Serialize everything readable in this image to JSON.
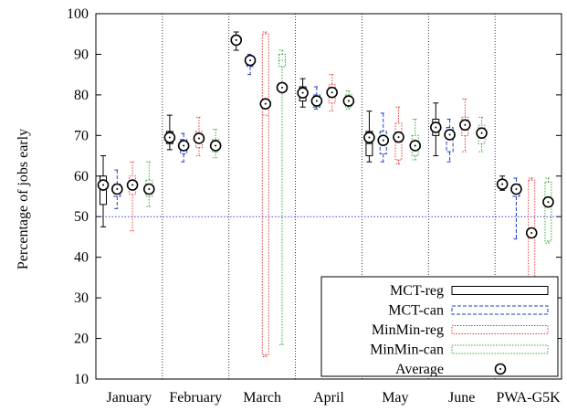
{
  "chart_data": {
    "type": "box",
    "ylabel": "Percentage of jobs early",
    "xlabel": "",
    "ylim": [
      10,
      100
    ],
    "yticks": [
      10,
      20,
      30,
      40,
      50,
      60,
      70,
      80,
      90,
      100
    ],
    "reference_line": 50,
    "categories": [
      "January",
      "February",
      "March",
      "April",
      "May",
      "June",
      "PWA-G5K"
    ],
    "legend": {
      "placement": "bottom-right",
      "entries": [
        "MCT-reg",
        "MCT-can",
        "MinMin-reg",
        "MinMin-can",
        "Average"
      ]
    },
    "colors": {
      "MCT-reg": "#000000",
      "MCT-can": "#1f3fc8",
      "MinMin-reg": "#e8393a",
      "MinMin-can": "#3aa83a",
      "reference": "#3a3ae0"
    },
    "series": [
      {
        "name": "MCT-reg",
        "style": "solid",
        "stats": [
          {
            "min": 47.5,
            "q1": 53,
            "median": 57,
            "q3": 60,
            "max": 65,
            "mean": 57.8
          },
          {
            "min": 66.5,
            "q1": 68,
            "median": 69.5,
            "q3": 71,
            "max": 75,
            "mean": 69.5
          },
          {
            "min": 91,
            "q1": 92.5,
            "median": 93.5,
            "q3": 94.5,
            "max": 95.5,
            "mean": 93.5
          },
          {
            "min": 77,
            "q1": 78.5,
            "median": 80.5,
            "q3": 82,
            "max": 84,
            "mean": 80.5
          },
          {
            "min": 63.5,
            "q1": 65,
            "median": 68,
            "q3": 71,
            "max": 76,
            "mean": 69.5
          },
          {
            "min": 65,
            "q1": 70,
            "median": 72,
            "q3": 74,
            "max": 78,
            "mean": 72
          },
          {
            "min": 56.5,
            "q1": 57,
            "median": 58,
            "q3": 59,
            "max": 60,
            "mean": 58
          }
        ]
      },
      {
        "name": "MCT-can",
        "style": "dashed",
        "stats": [
          {
            "min": 52,
            "q1": 55,
            "median": 56.5,
            "q3": 58,
            "max": 61.5,
            "mean": 56.8
          },
          {
            "min": 63.5,
            "q1": 65.5,
            "median": 67.5,
            "q3": 69,
            "max": 70.5,
            "mean": 67.5
          },
          {
            "min": 85,
            "q1": 87,
            "median": 88.5,
            "q3": 89.5,
            "max": 90,
            "mean": 88.5
          },
          {
            "min": 76.5,
            "q1": 77,
            "median": 78.5,
            "q3": 80,
            "max": 82,
            "mean": 78.5
          },
          {
            "min": 63.5,
            "q1": 65.5,
            "median": 68.5,
            "q3": 71,
            "max": 75.5,
            "mean": 68.8
          },
          {
            "min": 63.5,
            "q1": 66,
            "median": 70,
            "q3": 72,
            "max": 74,
            "mean": 70.2
          },
          {
            "min": 44.5,
            "q1": 55,
            "median": 57,
            "q3": 58,
            "max": 59.5,
            "mean": 56.8
          }
        ]
      },
      {
        "name": "MinMin-reg",
        "style": "dotted",
        "stats": [
          {
            "min": 46.5,
            "q1": 55.5,
            "median": 57.5,
            "q3": 60,
            "max": 63.5,
            "mean": 57.8
          },
          {
            "min": 65,
            "q1": 67,
            "median": 69,
            "q3": 71,
            "max": 74.5,
            "mean": 69.3
          },
          {
            "min": 15.5,
            "q1": 16,
            "median": 75,
            "q3": 95,
            "max": 95.5,
            "mean": 77.8
          },
          {
            "min": 76,
            "q1": 78,
            "median": 80.5,
            "q3": 82.5,
            "max": 85,
            "mean": 80.6
          },
          {
            "min": 63,
            "q1": 64,
            "median": 69.5,
            "q3": 73,
            "max": 77,
            "mean": 69.6
          },
          {
            "min": 66,
            "q1": 70,
            "median": 72.5,
            "q3": 74.5,
            "max": 79,
            "mean": 72.6
          },
          {
            "min": 30.5,
            "q1": 31,
            "median": 45,
            "q3": 59,
            "max": 59.5,
            "mean": 46
          }
        ]
      },
      {
        "name": "MinMin-can",
        "style": "dotted",
        "stats": [
          {
            "min": 52.5,
            "q1": 55,
            "median": 57,
            "q3": 59,
            "max": 63.5,
            "mean": 56.8
          },
          {
            "min": 64.5,
            "q1": 66,
            "median": 67.5,
            "q3": 69,
            "max": 71.5,
            "mean": 67.5
          },
          {
            "min": 18.5,
            "q1": 87,
            "median": 88.5,
            "q3": 90,
            "max": 91,
            "mean": 81.8
          },
          {
            "min": 76.5,
            "q1": 77,
            "median": 78.5,
            "q3": 80,
            "max": 81,
            "mean": 78.5
          },
          {
            "min": 64,
            "q1": 65,
            "median": 67.5,
            "q3": 70,
            "max": 74,
            "mean": 67.5
          },
          {
            "min": 66,
            "q1": 68,
            "median": 70.5,
            "q3": 72.5,
            "max": 74.5,
            "mean": 70.6
          },
          {
            "min": 43.5,
            "q1": 44,
            "median": 53,
            "q3": 58.5,
            "max": 59.5,
            "mean": 53.6
          }
        ]
      }
    ]
  }
}
